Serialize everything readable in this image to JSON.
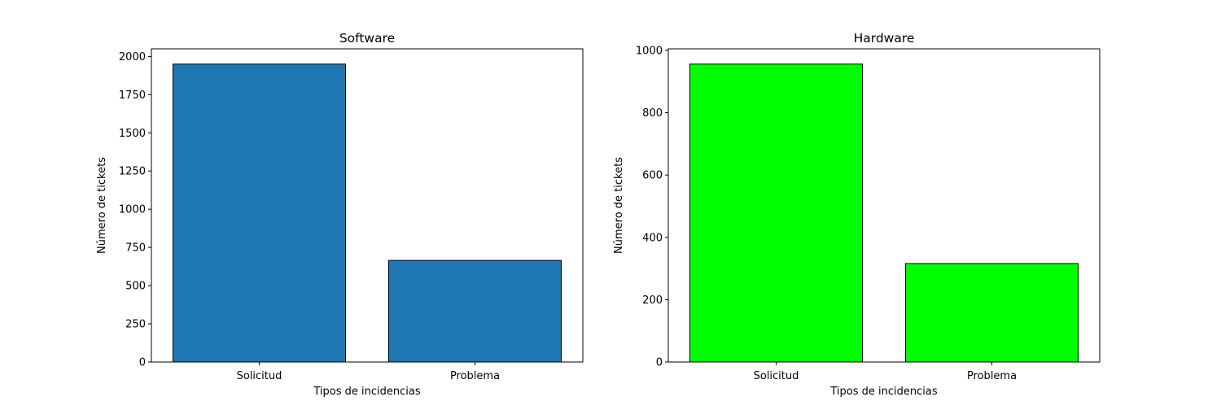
{
  "chart_data": [
    {
      "type": "bar",
      "title": "Software",
      "xlabel": "Tipos de incidencias",
      "ylabel": "Número de tickets",
      "categories": [
        "Solicitud",
        "Problema"
      ],
      "values": [
        1950,
        665
      ],
      "ylim": [
        0,
        2050
      ],
      "yticks": [
        0,
        250,
        500,
        750,
        1000,
        1250,
        1500,
        1750,
        2000
      ],
      "bar_color": "#1f77b4",
      "edge_color": "#000000",
      "grid": false
    },
    {
      "type": "bar",
      "title": "Hardware",
      "xlabel": "Tipos de incidencias",
      "ylabel": "Número de tickets",
      "categories": [
        "Solicitud",
        "Problema"
      ],
      "values": [
        956,
        316
      ],
      "ylim": [
        0,
        1005
      ],
      "yticks": [
        0,
        200,
        400,
        600,
        800,
        1000
      ],
      "bar_color": "#00ff00",
      "edge_color": "#000000",
      "grid": false
    }
  ]
}
